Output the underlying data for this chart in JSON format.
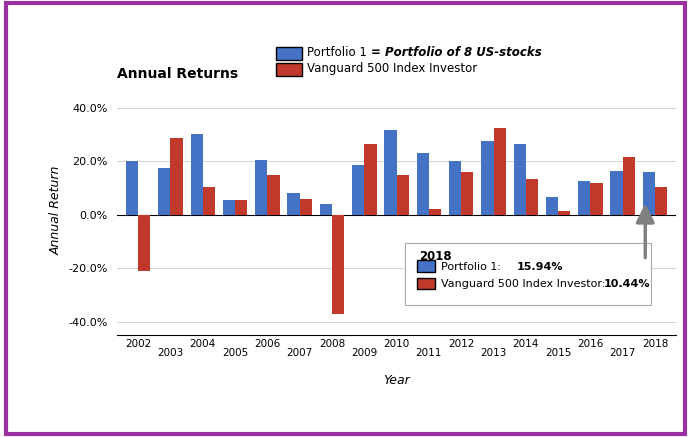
{
  "years": [
    2002,
    2003,
    2004,
    2005,
    2006,
    2007,
    2008,
    2009,
    2010,
    2011,
    2012,
    2013,
    2014,
    2015,
    2016,
    2017,
    2018
  ],
  "portfolio1": [
    20.0,
    17.5,
    30.0,
    5.5,
    20.5,
    8.0,
    4.0,
    18.5,
    31.5,
    23.0,
    20.0,
    27.5,
    26.5,
    6.5,
    12.5,
    16.5,
    15.94
  ],
  "vanguard": [
    -21.0,
    28.5,
    10.5,
    5.5,
    15.0,
    6.0,
    -37.0,
    26.5,
    15.0,
    2.0,
    16.0,
    32.5,
    13.5,
    1.5,
    12.0,
    21.5,
    10.44
  ],
  "portfolio1_color": "#4472C4",
  "vanguard_color": "#C0392B",
  "title": "Annual Returns",
  "xlabel": "Year",
  "ylabel": "Annual Return",
  "ylim": [
    -45,
    48
  ],
  "yticks": [
    -40.0,
    -20.0,
    0.0,
    20.0,
    40.0
  ],
  "bg_color": "#FFFFFF",
  "border_color": "#9B30A0",
  "legend_label1_normal": "Portfolio 1  ",
  "legend_label1_bold": "= Portfolio of 8 US-stocks",
  "legend_label2": "Vanguard 500 Index Investor",
  "tooltip_year": "2018",
  "tooltip_p1_label": "Portfolio 1: ",
  "tooltip_p1_val": "15.94%",
  "tooltip_v_label": "Vanguard 500 Index Investor: ",
  "tooltip_v_val": "10.44%",
  "arrow_color": "#808080"
}
